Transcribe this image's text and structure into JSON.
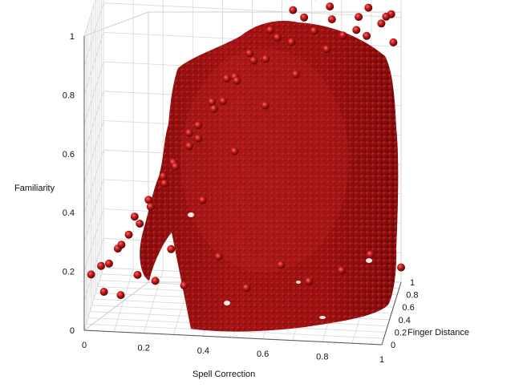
{
  "chart_data": {
    "type": "scatter",
    "projection": "3d",
    "title": "",
    "xlabel": "Spell Correction",
    "ylabel": "Finger Distance",
    "zlabel": "Familiarity",
    "xlim": [
      0,
      1
    ],
    "ylim": [
      0,
      1
    ],
    "zlim": [
      0,
      1
    ],
    "xticks": [
      "0",
      "0.2",
      "0.4",
      "0.6",
      "0.8",
      "1"
    ],
    "yticks": [
      "0",
      "0.2",
      "0.4",
      "0.6",
      "0.8",
      "1"
    ],
    "zticks": [
      "0",
      "0.2",
      "0.4",
      "0.6",
      "0.8",
      "1"
    ],
    "grid": true,
    "marker": "sphere",
    "marker_color": "#b01414",
    "series": [
      {
        "points": [
          [
            0.02,
            0.05,
            0.18
          ],
          [
            0.05,
            0.1,
            0.2
          ],
          [
            0.08,
            0.05,
            0.22
          ],
          [
            0.1,
            0.2,
            0.24
          ],
          [
            0.12,
            0.08,
            0.28
          ],
          [
            0.14,
            0.15,
            0.3
          ],
          [
            0.15,
            0.3,
            0.33
          ],
          [
            0.18,
            0.1,
            0.35
          ],
          [
            0.2,
            0.25,
            0.4
          ],
          [
            0.22,
            0.05,
            0.42
          ],
          [
            0.24,
            0.4,
            0.45
          ],
          [
            0.26,
            0.15,
            0.48
          ],
          [
            0.28,
            0.3,
            0.52
          ],
          [
            0.3,
            0.1,
            0.55
          ],
          [
            0.32,
            0.5,
            0.58
          ],
          [
            0.34,
            0.2,
            0.6
          ],
          [
            0.36,
            0.35,
            0.64
          ],
          [
            0.38,
            0.05,
            0.66
          ],
          [
            0.4,
            0.45,
            0.7
          ],
          [
            0.42,
            0.25,
            0.72
          ],
          [
            0.44,
            0.6,
            0.75
          ],
          [
            0.46,
            0.1,
            0.78
          ],
          [
            0.48,
            0.4,
            0.8
          ],
          [
            0.5,
            0.2,
            0.83
          ],
          [
            0.52,
            0.55,
            0.85
          ],
          [
            0.55,
            0.3,
            0.88
          ],
          [
            0.58,
            0.7,
            0.9
          ],
          [
            0.6,
            0.15,
            0.92
          ],
          [
            0.62,
            0.45,
            0.93
          ],
          [
            0.65,
            0.8,
            0.95
          ],
          [
            0.68,
            0.25,
            0.96
          ],
          [
            0.7,
            0.6,
            0.97
          ],
          [
            0.72,
            0.9,
            0.98
          ],
          [
            0.75,
            0.35,
            0.98
          ],
          [
            0.78,
            0.7,
            0.99
          ],
          [
            0.8,
            0.5,
            0.99
          ],
          [
            0.82,
            0.95,
            1.0
          ],
          [
            0.85,
            0.3,
            0.98
          ],
          [
            0.88,
            0.65,
            0.97
          ],
          [
            0.9,
            0.85,
            0.96
          ],
          [
            0.92,
            0.45,
            0.95
          ],
          [
            0.95,
            0.75,
            0.93
          ],
          [
            0.97,
            0.95,
            0.92
          ],
          [
            1.0,
            0.6,
            0.9
          ],
          [
            0.35,
            0.75,
            0.3
          ],
          [
            0.45,
            0.85,
            0.45
          ],
          [
            0.55,
            0.9,
            0.6
          ],
          [
            0.65,
            0.95,
            0.7
          ],
          [
            0.75,
            1.0,
            0.78
          ],
          [
            0.85,
            1.0,
            0.85
          ],
          [
            0.95,
            1.0,
            0.9
          ],
          [
            0.25,
            0.65,
            0.15
          ],
          [
            0.4,
            0.8,
            0.1
          ],
          [
            0.6,
            0.95,
            0.05
          ],
          [
            0.8,
            1.0,
            0.03
          ],
          [
            1.0,
            1.0,
            0.05
          ],
          [
            0.3,
            0.55,
            0.05
          ],
          [
            0.5,
            0.7,
            0.02
          ],
          [
            0.7,
            0.85,
            0.02
          ],
          [
            0.9,
            0.95,
            0.1
          ],
          [
            0.15,
            0.45,
            0.1
          ],
          [
            0.2,
            0.6,
            0.05
          ],
          [
            0.1,
            0.35,
            0.05
          ],
          [
            0.05,
            0.25,
            0.08
          ]
        ]
      }
    ]
  }
}
